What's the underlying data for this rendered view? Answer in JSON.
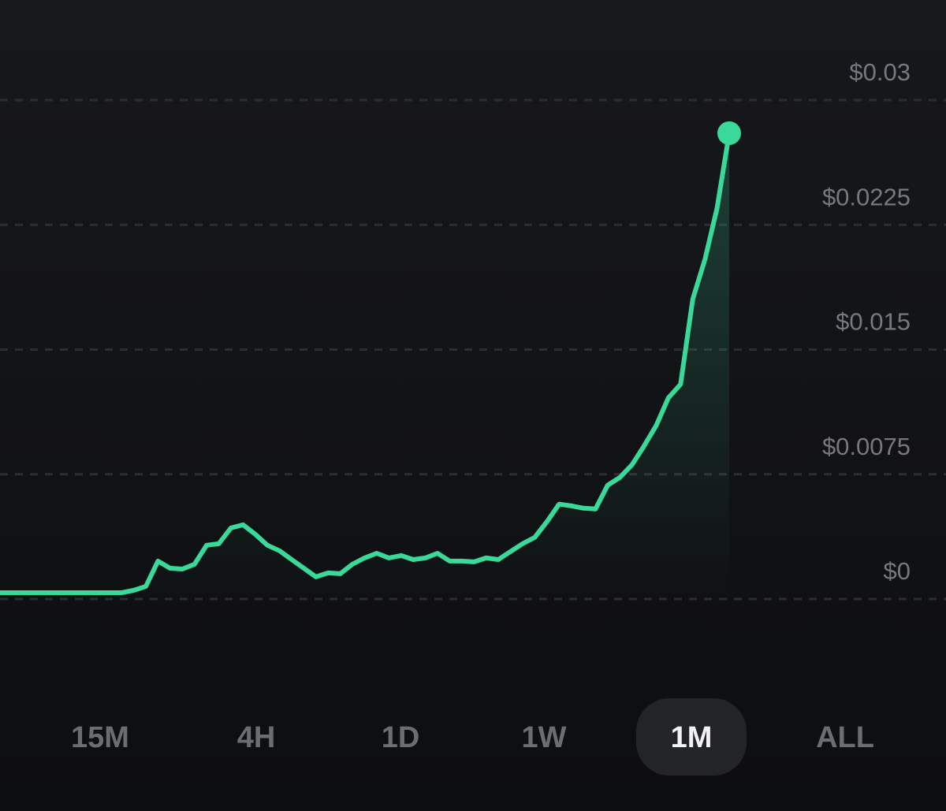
{
  "chart_data": {
    "type": "line",
    "color": "#3ad99a",
    "grid": true,
    "grid_style": "dashed",
    "ylim": [
      0,
      0.03
    ],
    "yticks": [
      {
        "value": 0,
        "label": "$0"
      },
      {
        "value": 0.0075,
        "label": "$0.0075"
      },
      {
        "value": 0.015,
        "label": "$0.015"
      },
      {
        "value": 0.0225,
        "label": "$0.0225"
      },
      {
        "value": 0.03,
        "label": "$0.03"
      }
    ],
    "values": [
      0.00038,
      0.00038,
      0.00038,
      0.00038,
      0.00038,
      0.00038,
      0.00038,
      0.00038,
      0.00038,
      0.00038,
      0.00038,
      0.00052,
      0.00076,
      0.00228,
      0.00185,
      0.0018,
      0.00209,
      0.00323,
      0.00332,
      0.00427,
      0.00446,
      0.00389,
      0.00323,
      0.0029,
      0.00237,
      0.00185,
      0.00133,
      0.00157,
      0.00152,
      0.00209,
      0.00247,
      0.00275,
      0.00247,
      0.00261,
      0.00237,
      0.00247,
      0.00275,
      0.00228,
      0.00228,
      0.00223,
      0.00247,
      0.00237,
      0.00285,
      0.00332,
      0.0037,
      0.00465,
      0.0057,
      0.0056,
      0.00546,
      0.00541,
      0.00684,
      0.00731,
      0.00807,
      0.00921,
      0.01044,
      0.0121,
      0.01291,
      0.01804,
      0.02041,
      0.0235,
      0.02801
    ]
  },
  "range_selector": {
    "options": [
      "15M",
      "4H",
      "1D",
      "1W",
      "1M",
      "ALL"
    ],
    "selected": 4
  }
}
